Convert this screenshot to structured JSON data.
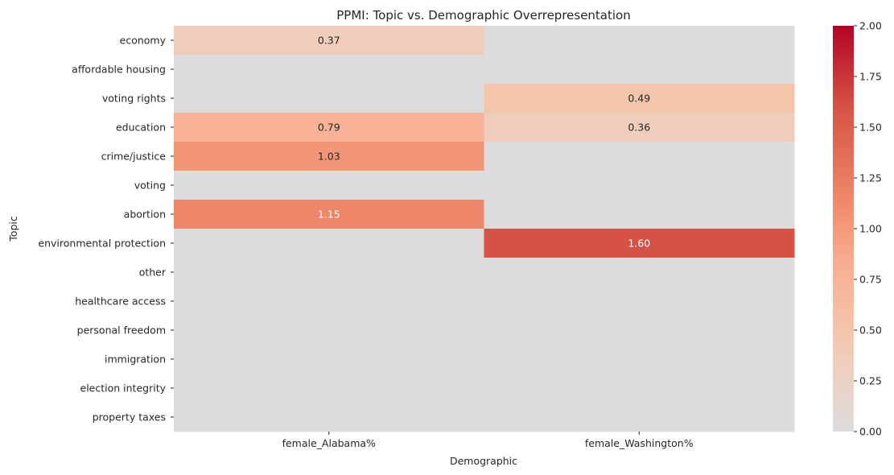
{
  "chart_data": {
    "type": "heatmap",
    "title": "PPMI: Topic vs. Demographic Overrepresentation",
    "xlabel": "Demographic",
    "ylabel": "Topic",
    "columns": [
      "female_Alabama%",
      "female_Washington%"
    ],
    "rows": [
      "economy",
      "affordable housing",
      "voting rights",
      "education",
      "crime/justice",
      "voting",
      "abortion",
      "environmental protection",
      "other",
      "healthcare access",
      "personal freedom",
      "immigration",
      "election integrity",
      "property taxes"
    ],
    "values": [
      [
        0.37,
        0
      ],
      [
        0,
        0
      ],
      [
        0,
        0.49
      ],
      [
        0.79,
        0.36
      ],
      [
        1.03,
        0
      ],
      [
        0,
        0
      ],
      [
        1.15,
        0
      ],
      [
        0,
        1.6
      ],
      [
        0,
        0
      ],
      [
        0,
        0
      ],
      [
        0,
        0
      ],
      [
        0,
        0
      ],
      [
        0,
        0
      ],
      [
        0,
        0
      ]
    ],
    "annotate_nonzero_only": true,
    "colormap": "coolwarm",
    "color_range": [
      0,
      2
    ],
    "colorbar_ticks": [
      "0.00",
      "0.25",
      "0.50",
      "0.75",
      "1.00",
      "1.25",
      "1.50",
      "1.75",
      "2.00"
    ],
    "zero_color": "#dddcdc",
    "max_color": "#b40426"
  }
}
